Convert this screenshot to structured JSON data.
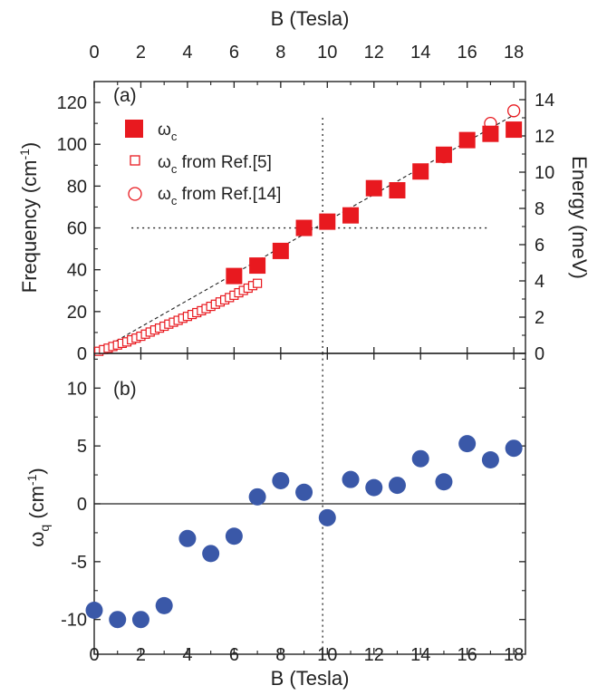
{
  "chart_data": [
    {
      "id": "a",
      "type": "scatter",
      "panel_label": "(a)",
      "xlabel_top": "B (Tesla)",
      "ylabel": "Frequency (cm",
      "ylabel_sup": "-1",
      "ylabel_tail": ")",
      "ylabel_right": "Energy (meV)",
      "xlim": [
        0,
        18.5
      ],
      "ylim": [
        0,
        130
      ],
      "ylim_right": [
        0,
        15
      ],
      "xticks": [
        0,
        2,
        4,
        6,
        8,
        10,
        12,
        14,
        16,
        18
      ],
      "yticks": [
        0,
        20,
        40,
        60,
        80,
        100,
        120
      ],
      "yticks_right": [
        0,
        2,
        4,
        6,
        8,
        10,
        12,
        14
      ],
      "legend_position": "top-left",
      "series": [
        {
          "name": "ωc",
          "name_sym": "ω",
          "name_sub": "c",
          "name_tail": "",
          "marker": "filled-square",
          "color": "#e8191f",
          "x": [
            6,
            7,
            8,
            9,
            10,
            11,
            12,
            13,
            14,
            15,
            16,
            17,
            18
          ],
          "y": [
            37,
            42,
            49,
            60,
            63,
            66,
            79,
            78,
            87,
            95,
            102,
            105,
            107
          ]
        },
        {
          "name": "ωc from Ref.[5]",
          "name_sym": "ω",
          "name_sub": "c",
          "name_tail": " from Ref.[5]",
          "marker": "open-square",
          "color": "#e8191f",
          "x": [
            0.2,
            0.4,
            0.6,
            0.8,
            1.0,
            1.2,
            1.4,
            1.6,
            1.8,
            2.0,
            2.2,
            2.4,
            2.6,
            2.8,
            3.0,
            3.2,
            3.4,
            3.6,
            3.8,
            4.0,
            4.2,
            4.4,
            4.6,
            4.8,
            5.0,
            5.2,
            5.4,
            5.6,
            5.8,
            6.0,
            6.2,
            6.4,
            6.6,
            6.8,
            7.0
          ],
          "y": [
            1,
            1.8,
            2.5,
            3.3,
            4,
            4.8,
            5.5,
            6.5,
            7.3,
            8.2,
            9.2,
            10.2,
            11.2,
            12.1,
            13,
            14,
            14.9,
            15.8,
            16.8,
            17.7,
            18.6,
            19.5,
            20.4,
            21.4,
            22.5,
            23.5,
            24.6,
            25.6,
            26.7,
            27.8,
            29,
            30.1,
            31.2,
            32.4,
            33.5
          ]
        },
        {
          "name": "ωc from Ref.[14]",
          "name_sym": "ω",
          "name_sub": "c",
          "name_tail": " from Ref.[14]",
          "marker": "open-circle",
          "color": "#e8191f",
          "x": [
            15,
            16,
            17,
            18
          ],
          "y": [
            94,
            102,
            110,
            116
          ]
        }
      ],
      "fit_line": {
        "style": "dashed",
        "x": [
          0,
          18
        ],
        "y": [
          0,
          114
        ]
      },
      "reference_lines": [
        {
          "orientation": "horizontal",
          "style": "dotted",
          "y": 60,
          "x_range": [
            1.6,
            16.9
          ]
        },
        {
          "orientation": "vertical",
          "style": "dotted",
          "x": 9.8,
          "y_range": [
            0,
            114
          ]
        }
      ]
    },
    {
      "id": "b",
      "type": "scatter",
      "panel_label": "(b)",
      "xlabel": "B (Tesla)",
      "ylabel_sym": "ω",
      "ylabel_sub": "q",
      "ylabel_mid": " (cm",
      "ylabel_sup": "-1",
      "ylabel_tail": ")",
      "xlim": [
        0,
        18.5
      ],
      "ylim": [
        -13,
        13
      ],
      "xticks": [
        0,
        2,
        4,
        6,
        8,
        10,
        12,
        14,
        16,
        18
      ],
      "yticks": [
        -10,
        -5,
        0,
        5,
        10
      ],
      "yticklabels": [
        "-10",
        "-5",
        "0",
        "5",
        "10"
      ],
      "series": [
        {
          "marker": "filled-circle",
          "color": "#3a58a8",
          "x": [
            0,
            1,
            2,
            3,
            4,
            5,
            6,
            7,
            8,
            9,
            10,
            11,
            12,
            13,
            14,
            15,
            16,
            17,
            18
          ],
          "y": [
            -9.2,
            -10,
            -10,
            -8.8,
            -3,
            -4.3,
            -2.8,
            0.6,
            2,
            1,
            -1.2,
            2.1,
            1.4,
            1.6,
            3.9,
            1.9,
            5.2,
            3.8,
            4.8
          ]
        }
      ],
      "reference_lines": [
        {
          "orientation": "horizontal",
          "style": "solid",
          "y": 0
        },
        {
          "orientation": "vertical",
          "style": "dotted",
          "x": 9.8,
          "y_range": [
            -12.5,
            13
          ]
        }
      ]
    }
  ]
}
